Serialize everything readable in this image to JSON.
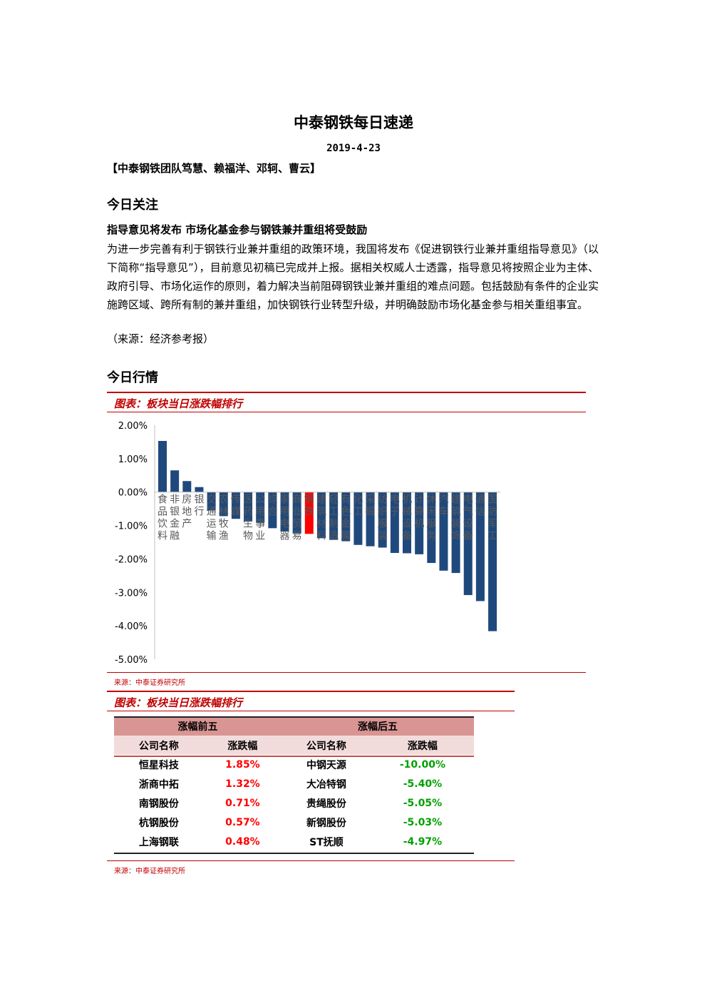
{
  "doc": {
    "title": "中泰钢铁每日速递",
    "date": "2019-4-23",
    "team": "【中泰钢铁团队笃慧、赖福洋、邓轲、曹云】"
  },
  "focus": {
    "heading": "今日关注",
    "headline": "指导意见将发布 市场化基金参与钢铁兼并重组将受鼓励",
    "body": "为进一步完善有利于钢铁行业兼并重组的政策环境，我国将发布《促进钢铁行业兼并重组指导意见》（以下简称“指导意见”），目前意见初稿已完成并上报。据相关权威人士透露，指导意见将按照企业为主体、政府引导、市场化运作的原则，着力解决当前阻碍钢铁业兼并重组的难点问题。包括鼓励有条件的企业实施跨区域、跨所有制的兼并重组，加快钢铁行业转型升级，并明确鼓励市场化基金参与相关重组事宜。",
    "source": "（来源：经济参考报）"
  },
  "market": {
    "heading": "今日行情",
    "figure1_caption": "图表：板块当日涨跌幅排行",
    "figure1_source": "来源：中泰证券研究所",
    "figure2_caption": "图表：板块当日涨跌幅排行",
    "figure2_source": "来源：中泰证券研究所"
  },
  "colors": {
    "accent": "#c00000",
    "bar": "#1f497d",
    "highlight_bar": "#ff0000",
    "up": "#ff0000",
    "down": "#00a000"
  },
  "chart_data": {
    "type": "bar",
    "categories": [
      "食品饮料",
      "非银金融",
      "房地产",
      "银行",
      "交通运输",
      "农林牧渔",
      "传媒",
      "医药生物",
      "公用事业",
      "综合",
      "家用电器",
      "商业贸易",
      "钢铁",
      "建筑材料",
      "轻工制造",
      "有色金属",
      "化工",
      "采掘",
      "纺织服装",
      "电子",
      "机械设备",
      "计算机",
      "休闲服务",
      "汽车",
      "建筑装饰",
      "电气设备",
      "通信",
      "国防军工"
    ],
    "values": [
      1.53,
      0.65,
      0.33,
      0.15,
      -0.55,
      -0.72,
      -0.8,
      -0.88,
      -0.92,
      -1.08,
      -1.18,
      -1.24,
      -1.25,
      -1.38,
      -1.43,
      -1.47,
      -1.58,
      -1.62,
      -1.66,
      -1.82,
      -1.83,
      -1.86,
      -2.12,
      -2.35,
      -2.42,
      -3.08,
      -3.26,
      -4.16
    ],
    "highlight": "钢铁",
    "ylim": [
      -5,
      2
    ],
    "yticks": [
      "2.00%",
      "1.00%",
      "0.00%",
      "-1.00%",
      "-2.00%",
      "-3.00%",
      "-4.00%",
      "-5.00%"
    ],
    "unit": "%"
  },
  "table": {
    "group_top": "涨幅前五",
    "group_bottom": "涨幅后五",
    "col_name": "公司名称",
    "col_change": "涨跌幅",
    "top5": [
      {
        "name": "恒星科技",
        "change": "1.85%"
      },
      {
        "name": "浙商中拓",
        "change": "1.32%"
      },
      {
        "name": "南钢股份",
        "change": "0.71%"
      },
      {
        "name": "杭钢股份",
        "change": "0.57%"
      },
      {
        "name": "上海钢联",
        "change": "0.48%"
      }
    ],
    "bottom5": [
      {
        "name": "中钢天源",
        "change": "-10.00%"
      },
      {
        "name": "大冶特钢",
        "change": "-5.40%"
      },
      {
        "name": "贵绳股份",
        "change": "-5.05%"
      },
      {
        "name": "新钢股份",
        "change": "-5.03%"
      },
      {
        "name": "ST抚顺",
        "change": "-4.97%"
      }
    ]
  }
}
